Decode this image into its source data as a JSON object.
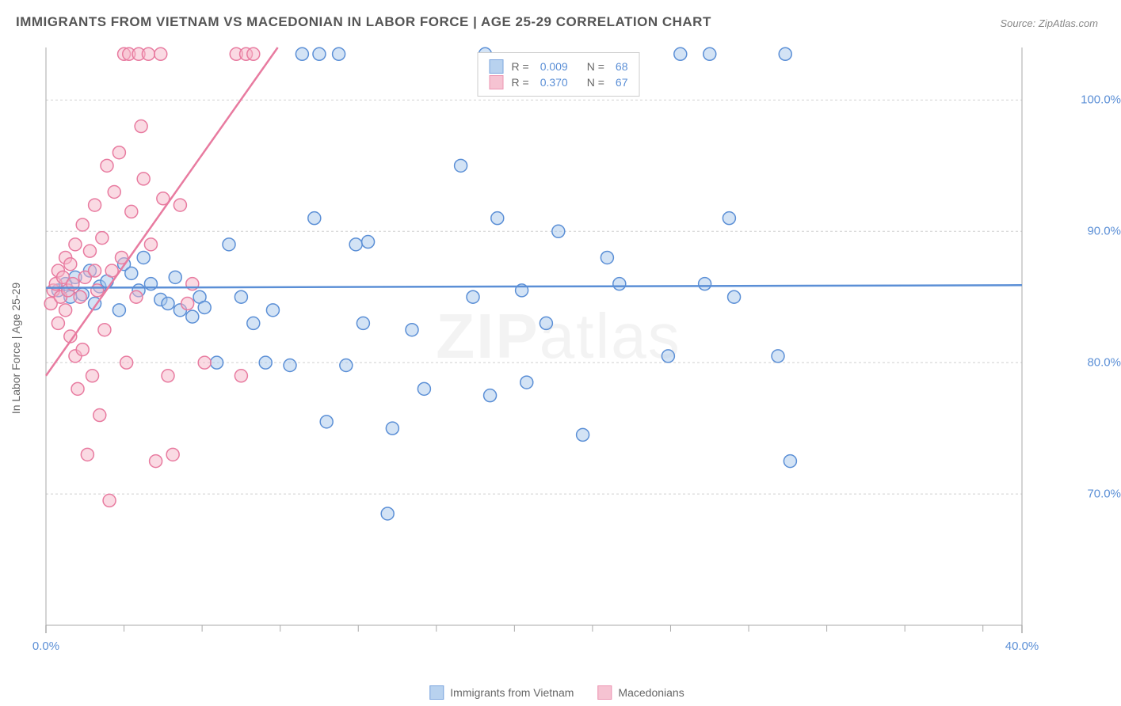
{
  "title": "IMMIGRANTS FROM VIETNAM VS MACEDONIAN IN LABOR FORCE | AGE 25-29 CORRELATION CHART",
  "source": "Source: ZipAtlas.com",
  "watermark_bold": "ZIP",
  "watermark_light": "atlas",
  "chart": {
    "type": "scatter",
    "y_axis_label": "In Labor Force | Age 25-29",
    "xlim": [
      0,
      40
    ],
    "ylim": [
      60,
      104
    ],
    "x_ticks": [
      0,
      40
    ],
    "x_tick_labels": [
      "0.0%",
      "40.0%"
    ],
    "x_minor_ticks": [
      3.2,
      6.4,
      9.6,
      12.8,
      16.0,
      19.2,
      22.4,
      25.6,
      28.8,
      32.0,
      35.2,
      38.4
    ],
    "y_ticks": [
      70,
      80,
      90,
      100
    ],
    "y_tick_labels": [
      "70.0%",
      "80.0%",
      "90.0%",
      "100.0%"
    ],
    "grid_color": "#d0d0d0",
    "axis_color": "#aaaaaa",
    "background_color": "#ffffff",
    "marker_radius": 8,
    "marker_stroke_width": 1.5,
    "line_width": 2.5,
    "series": [
      {
        "name": "Immigrants from Vietnam",
        "fill_color": "#a7c7ec",
        "stroke_color": "#5b8fd6",
        "fill_opacity": 0.5,
        "R": "0.009",
        "N": "68",
        "trend_line": {
          "x1": 0,
          "y1": 85.7,
          "x2": 40,
          "y2": 85.9
        },
        "points": [
          [
            0.5,
            85.5
          ],
          [
            0.8,
            86.0
          ],
          [
            1.0,
            85.0
          ],
          [
            1.2,
            86.5
          ],
          [
            1.5,
            85.2
          ],
          [
            1.8,
            87.0
          ],
          [
            2.0,
            84.5
          ],
          [
            2.2,
            85.8
          ],
          [
            2.5,
            86.2
          ],
          [
            3.0,
            84.0
          ],
          [
            3.2,
            87.5
          ],
          [
            3.5,
            86.8
          ],
          [
            3.8,
            85.5
          ],
          [
            4.0,
            88.0
          ],
          [
            4.3,
            86.0
          ],
          [
            4.7,
            84.8
          ],
          [
            5.0,
            84.5
          ],
          [
            5.3,
            86.5
          ],
          [
            5.5,
            84.0
          ],
          [
            6.0,
            83.5
          ],
          [
            6.3,
            85.0
          ],
          [
            6.5,
            84.2
          ],
          [
            7.0,
            80.0
          ],
          [
            7.5,
            89.0
          ],
          [
            8.0,
            85.0
          ],
          [
            8.5,
            83.0
          ],
          [
            9.0,
            80.0
          ],
          [
            9.3,
            84.0
          ],
          [
            10.0,
            79.8
          ],
          [
            10.5,
            103.5
          ],
          [
            11.0,
            91.0
          ],
          [
            11.2,
            103.5
          ],
          [
            11.5,
            75.5
          ],
          [
            12.0,
            103.5
          ],
          [
            12.3,
            79.8
          ],
          [
            12.7,
            89.0
          ],
          [
            13.0,
            83.0
          ],
          [
            13.2,
            89.2
          ],
          [
            14.0,
            68.5
          ],
          [
            14.2,
            75.0
          ],
          [
            15.0,
            82.5
          ],
          [
            15.5,
            78.0
          ],
          [
            17.0,
            95.0
          ],
          [
            17.5,
            85.0
          ],
          [
            18.0,
            103.5
          ],
          [
            18.2,
            77.5
          ],
          [
            18.5,
            91.0
          ],
          [
            19.5,
            85.5
          ],
          [
            19.7,
            78.5
          ],
          [
            20.5,
            83.0
          ],
          [
            21.0,
            90.0
          ],
          [
            22.0,
            74.5
          ],
          [
            23.0,
            88.0
          ],
          [
            23.5,
            86.0
          ],
          [
            25.5,
            80.5
          ],
          [
            26.0,
            103.5
          ],
          [
            27.0,
            86.0
          ],
          [
            27.2,
            103.5
          ],
          [
            28.0,
            91.0
          ],
          [
            28.2,
            85.0
          ],
          [
            30.0,
            80.5
          ],
          [
            30.3,
            103.5
          ],
          [
            30.5,
            72.5
          ]
        ]
      },
      {
        "name": "Macedonians",
        "fill_color": "#f5b5c8",
        "stroke_color": "#e87ba0",
        "fill_opacity": 0.5,
        "R": "0.370",
        "N": "67",
        "trend_line": {
          "x1": 0,
          "y1": 79.0,
          "x2": 9.5,
          "y2": 104
        },
        "points": [
          [
            0.2,
            84.5
          ],
          [
            0.3,
            85.5
          ],
          [
            0.4,
            86.0
          ],
          [
            0.5,
            83.0
          ],
          [
            0.5,
            87.0
          ],
          [
            0.6,
            85.0
          ],
          [
            0.7,
            86.5
          ],
          [
            0.8,
            84.0
          ],
          [
            0.8,
            88.0
          ],
          [
            0.9,
            85.5
          ],
          [
            1.0,
            82.0
          ],
          [
            1.0,
            87.5
          ],
          [
            1.1,
            86.0
          ],
          [
            1.2,
            80.5
          ],
          [
            1.2,
            89.0
          ],
          [
            1.3,
            78.0
          ],
          [
            1.4,
            85.0
          ],
          [
            1.5,
            90.5
          ],
          [
            1.5,
            81.0
          ],
          [
            1.6,
            86.5
          ],
          [
            1.7,
            73.0
          ],
          [
            1.8,
            88.5
          ],
          [
            1.9,
            79.0
          ],
          [
            2.0,
            87.0
          ],
          [
            2.0,
            92.0
          ],
          [
            2.1,
            85.5
          ],
          [
            2.2,
            76.0
          ],
          [
            2.3,
            89.5
          ],
          [
            2.4,
            82.5
          ],
          [
            2.5,
            95.0
          ],
          [
            2.6,
            69.5
          ],
          [
            2.7,
            87.0
          ],
          [
            2.8,
            93.0
          ],
          [
            3.0,
            96.0
          ],
          [
            3.1,
            88.0
          ],
          [
            3.2,
            103.5
          ],
          [
            3.3,
            80.0
          ],
          [
            3.4,
            103.5
          ],
          [
            3.5,
            91.5
          ],
          [
            3.7,
            85.0
          ],
          [
            3.8,
            103.5
          ],
          [
            3.9,
            98.0
          ],
          [
            4.0,
            94.0
          ],
          [
            4.2,
            103.5
          ],
          [
            4.3,
            89.0
          ],
          [
            4.5,
            72.5
          ],
          [
            4.7,
            103.5
          ],
          [
            4.8,
            92.5
          ],
          [
            5.0,
            79.0
          ],
          [
            5.2,
            73.0
          ],
          [
            5.5,
            92.0
          ],
          [
            5.8,
            84.5
          ],
          [
            6.0,
            86.0
          ],
          [
            6.5,
            80.0
          ],
          [
            7.8,
            103.5
          ],
          [
            8.0,
            79.0
          ],
          [
            8.2,
            103.5
          ],
          [
            8.5,
            103.5
          ]
        ]
      }
    ],
    "legend_top": {
      "rows": [
        {
          "series_index": 0,
          "R_label": "R =",
          "N_label": "N ="
        },
        {
          "series_index": 1,
          "R_label": "R =",
          "N_label": "N ="
        }
      ]
    },
    "legend_bottom": [
      {
        "series_index": 0
      },
      {
        "series_index": 1
      }
    ]
  }
}
